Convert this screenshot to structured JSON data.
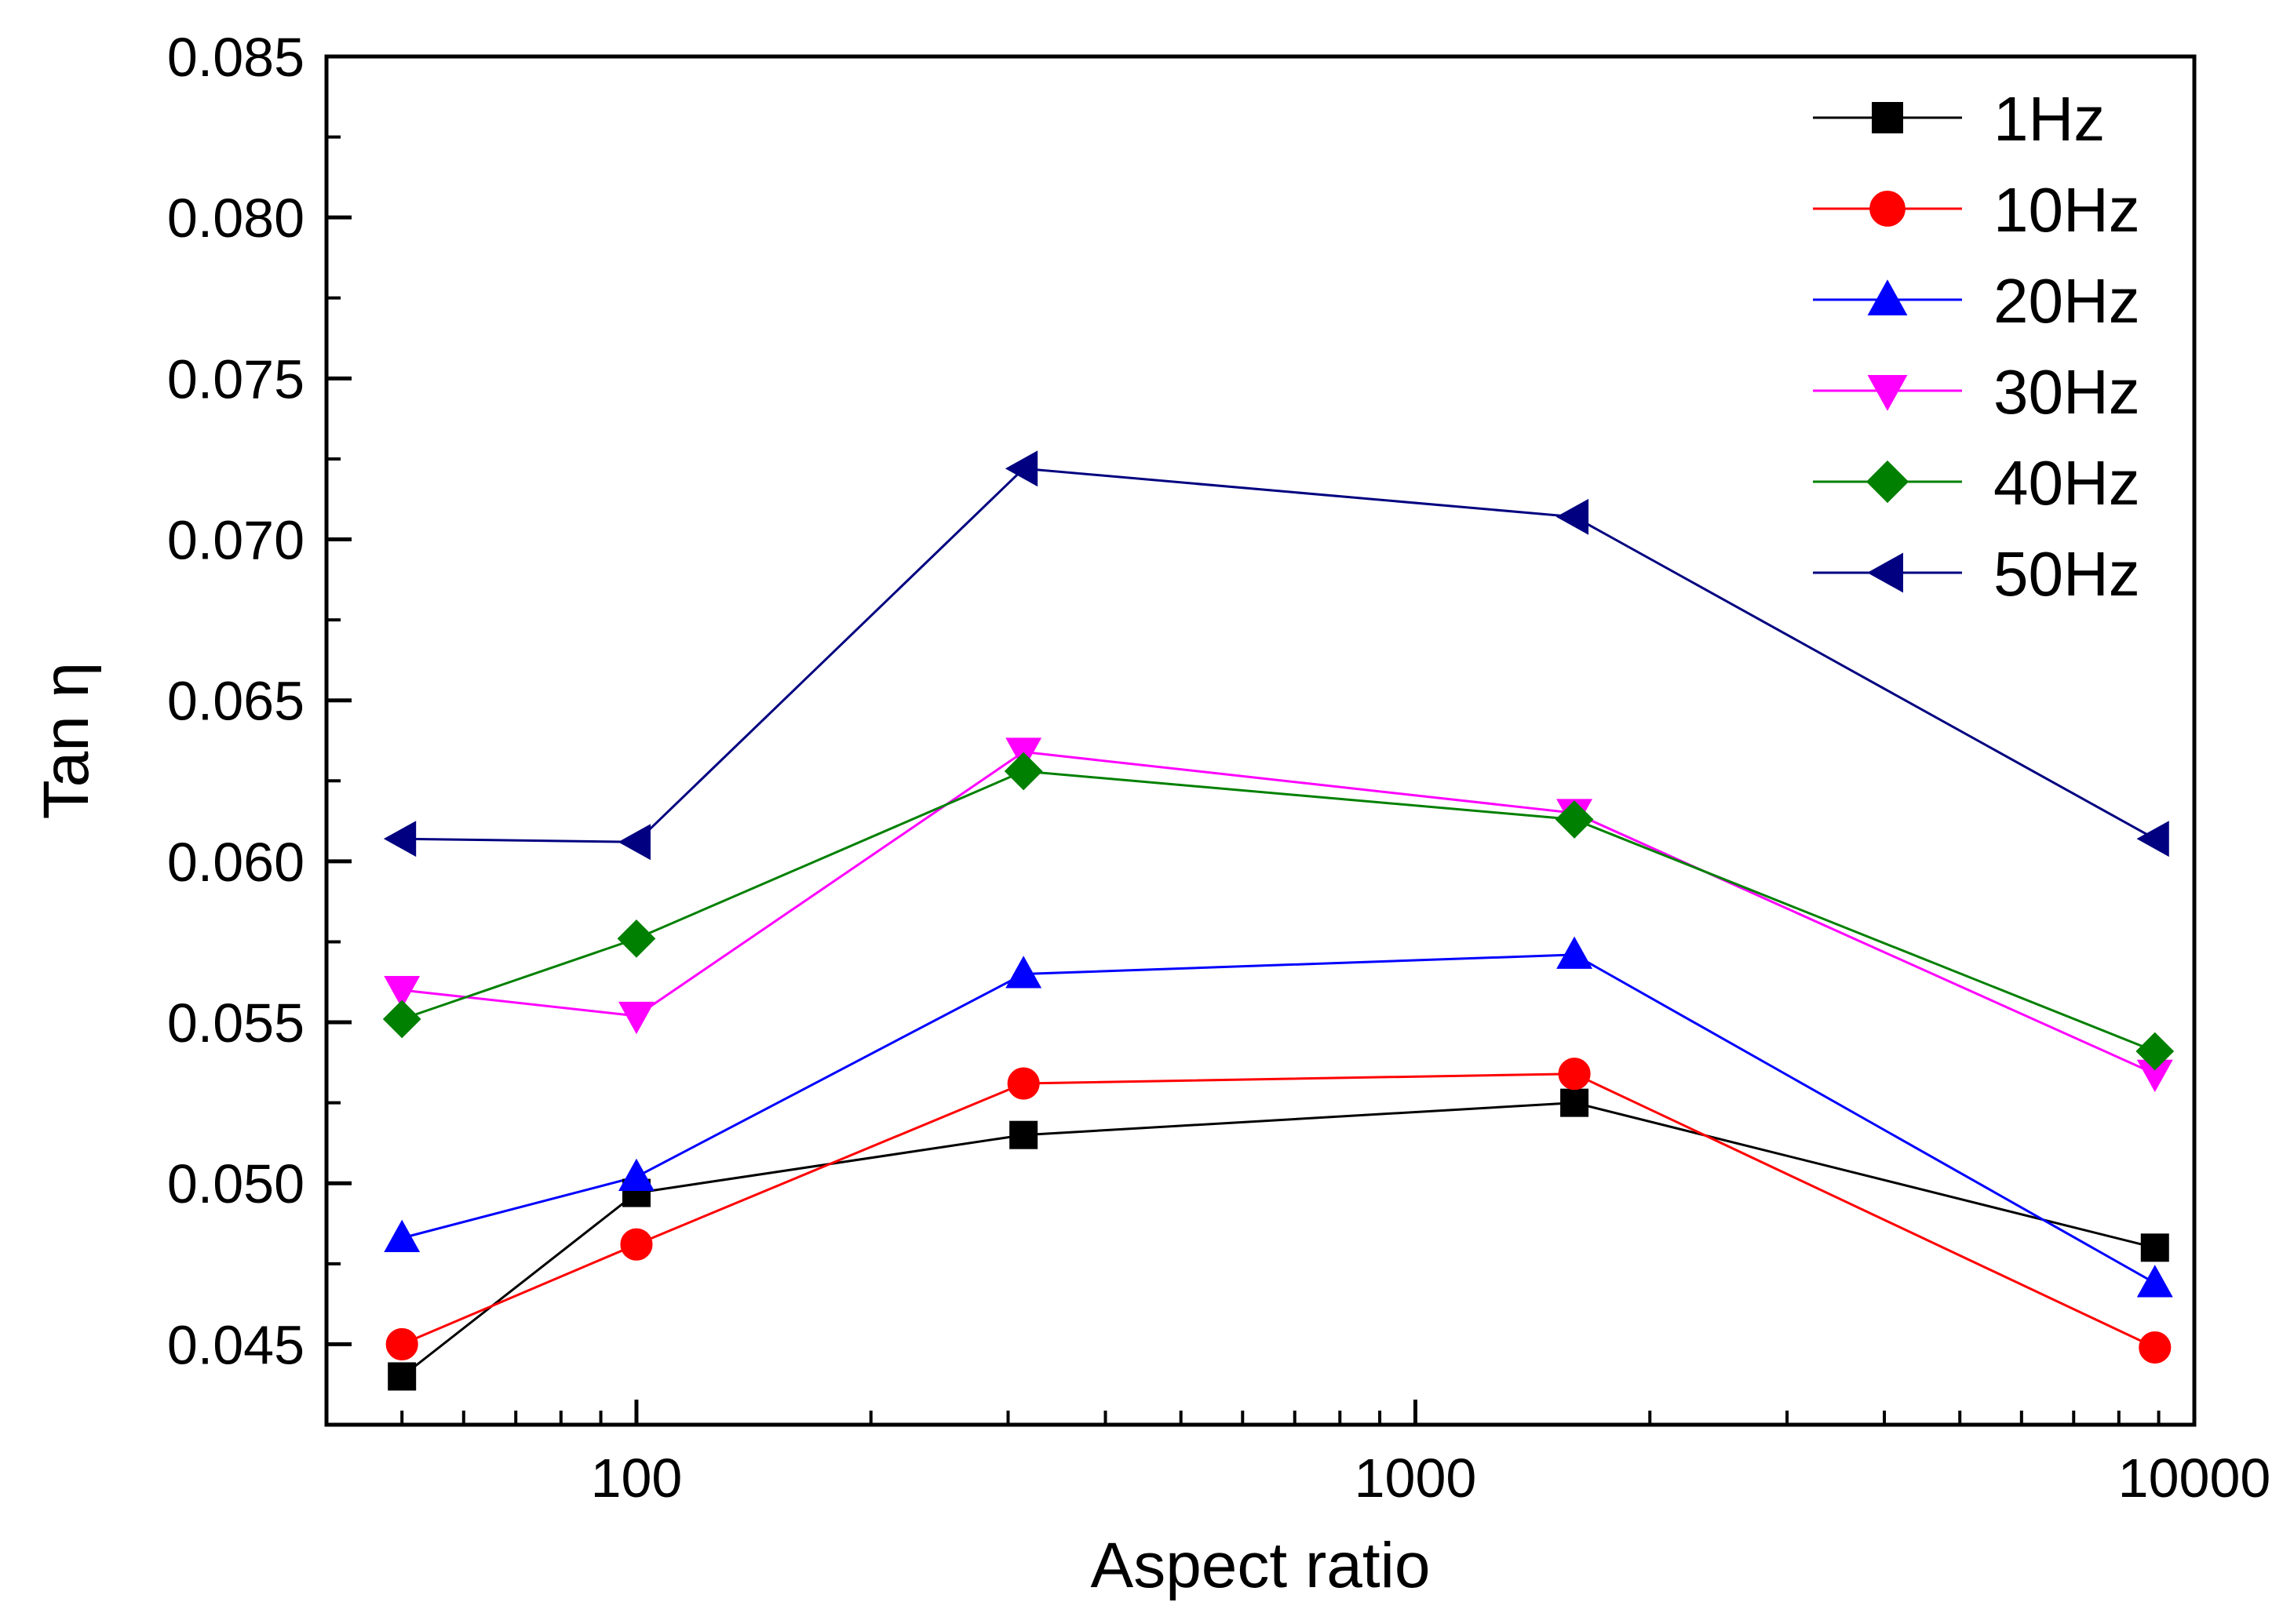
{
  "chart_data": {
    "type": "line",
    "title": "",
    "xlabel": "Aspect ratio",
    "ylabel": "Tan η",
    "xscale": "log",
    "xlim": [
      40,
      10000
    ],
    "ylim": [
      0.0425,
      0.085
    ],
    "x": [
      50,
      100,
      314,
      1600,
      8900
    ],
    "xticks": [
      {
        "value": 100,
        "label": "100"
      },
      {
        "value": 1000,
        "label": "1000"
      },
      {
        "value": 10000,
        "label": "10000"
      }
    ],
    "yticks": [
      {
        "value": 0.045,
        "label": "0.045"
      },
      {
        "value": 0.05,
        "label": "0.050"
      },
      {
        "value": 0.055,
        "label": "0.055"
      },
      {
        "value": 0.06,
        "label": "0.060"
      },
      {
        "value": 0.065,
        "label": "0.065"
      },
      {
        "value": 0.07,
        "label": "0.070"
      },
      {
        "value": 0.075,
        "label": "0.075"
      },
      {
        "value": 0.08,
        "label": "0.080"
      },
      {
        "value": 0.085,
        "label": "0.085"
      }
    ],
    "legend_position": "top-right",
    "series": [
      {
        "name": "1Hz",
        "color": "#000000",
        "marker": "square",
        "values": [
          0.044,
          0.0497,
          0.0515,
          0.0525,
          0.048
        ]
      },
      {
        "name": "10Hz",
        "color": "#ff0000",
        "marker": "circle",
        "values": [
          0.045,
          0.0481,
          0.0531,
          0.0534,
          0.0449
        ]
      },
      {
        "name": "20Hz",
        "color": "#0000ff",
        "marker": "triangle-up",
        "values": [
          0.0483,
          0.0502,
          0.0565,
          0.0571,
          0.0469
        ]
      },
      {
        "name": "30Hz",
        "color": "#ff00ff",
        "marker": "triangle-down",
        "values": [
          0.056,
          0.0552,
          0.0634,
          0.0615,
          0.0534
        ]
      },
      {
        "name": "40Hz",
        "color": "#008000",
        "marker": "diamond",
        "values": [
          0.0551,
          0.0576,
          0.0628,
          0.0613,
          0.0541
        ]
      },
      {
        "name": "50Hz",
        "color": "#000080",
        "marker": "triangle-left",
        "values": [
          0.0607,
          0.0606,
          0.0722,
          0.0707,
          0.0607
        ]
      }
    ]
  }
}
